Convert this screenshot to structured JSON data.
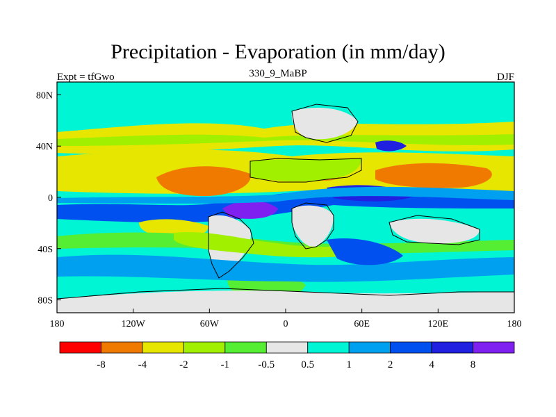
{
  "title": "Precipitation - Evaporation (in mm/day)",
  "experiment_label": "Expt = tfGwo",
  "period_label": "330_9_MaBP",
  "season_label": "DJF",
  "lon_ticks": [
    "180",
    "120W",
    "60W",
    "0",
    "60E",
    "120E",
    "180"
  ],
  "lat_ticks": [
    "80N",
    "40N",
    "0",
    "40S",
    "80S"
  ],
  "colorbar": {
    "labels": [
      "-8",
      "-4",
      "-2",
      "-1",
      "-0.5",
      "0.5",
      "1",
      "2",
      "4",
      "8"
    ],
    "colors": [
      "#ff0000",
      "#f07a00",
      "#e6e600",
      "#a0f000",
      "#55ee33",
      "#e6e6e6",
      "#00f5d5",
      "#00a0f0",
      "#0050f0",
      "#2020e0",
      "#8020f0"
    ]
  },
  "map_colors": {
    "ocean_bg": "#00f5d5",
    "land": "#e6e6e6",
    "yellow": "#e6e600",
    "orange": "#f07a00",
    "lime": "#a0f000",
    "green": "#55ee33",
    "lightblue": "#00a0f0",
    "blue": "#0050f0",
    "darkblue": "#2020e0",
    "purple": "#8020f0"
  }
}
